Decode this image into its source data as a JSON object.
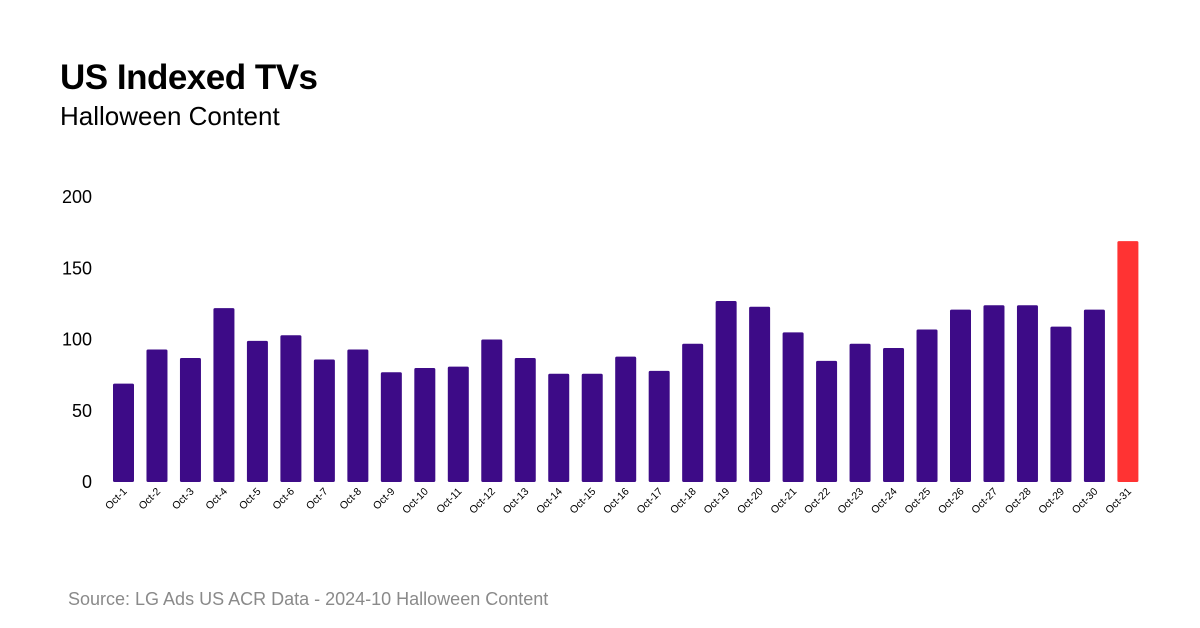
{
  "header": {
    "title": "US Indexed TVs",
    "subtitle": "Halloween Content"
  },
  "footer": {
    "source": "Source: LG Ads US ACR Data - 2024-10 Halloween Content"
  },
  "colors": {
    "bar": "#3d0b87",
    "highlight": "#ff3333"
  },
  "chart_data": {
    "type": "bar",
    "title": "US Indexed TVs",
    "subtitle": "Halloween Content",
    "xlabel": "",
    "ylabel": "",
    "ylim": [
      0,
      200
    ],
    "yticks": [
      0,
      50,
      100,
      150,
      200
    ],
    "grid": false,
    "legend": "none",
    "highlight_category": "Oct-31",
    "categories": [
      "Oct-1",
      "Oct-2",
      "Oct-3",
      "Oct-4",
      "Oct-5",
      "Oct-6",
      "Oct-7",
      "Oct-8",
      "Oct-9",
      "Oct-10",
      "Oct-11",
      "Oct-12",
      "Oct-13",
      "Oct-14",
      "Oct-15",
      "Oct-16",
      "Oct-17",
      "Oct-18",
      "Oct-19",
      "Oct-20",
      "Oct-21",
      "Oct-22",
      "Oct-23",
      "Oct-24",
      "Oct-25",
      "Oct-26",
      "Oct-27",
      "Oct-28",
      "Oct-29",
      "Oct-30",
      "Oct-31"
    ],
    "values": [
      69,
      93,
      87,
      122,
      99,
      103,
      86,
      93,
      77,
      80,
      81,
      100,
      87,
      76,
      76,
      88,
      78,
      97,
      127,
      123,
      105,
      85,
      97,
      94,
      107,
      121,
      124,
      124,
      109,
      121,
      169
    ]
  }
}
